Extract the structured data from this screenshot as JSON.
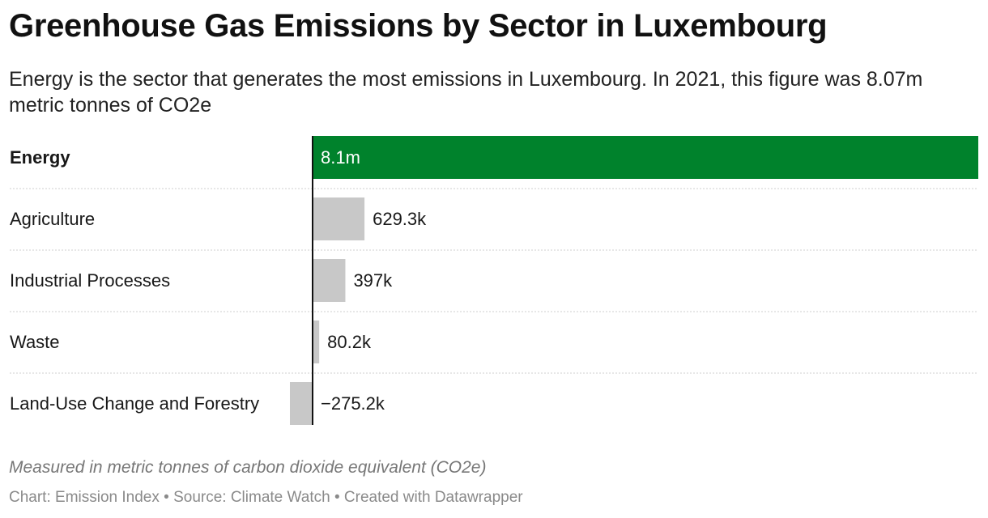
{
  "title": "Greenhouse Gas Emissions by Sector in Luxembourg",
  "subtitle": "Energy is the sector that generates the most emissions in Luxembourg. In 2021, this figure was 8.07m metric tonnes of CO2e",
  "notes": "Measured in metric tonnes of carbon dioxide equivalent (CO2e)",
  "footer": {
    "chart": "Chart: Emission Index",
    "source": "Source: Climate Watch",
    "created": "Created with Datawrapper",
    "separator": " • "
  },
  "colors": {
    "highlight": "#00822c",
    "default": "#c8c8c8",
    "axis": "#111111"
  },
  "chart_data": {
    "type": "bar",
    "orientation": "horizontal",
    "title": "Greenhouse Gas Emissions by Sector in Luxembourg",
    "categories": [
      "Energy",
      "Agriculture",
      "Industrial Processes",
      "Waste",
      "Land-Use Change and Forestry"
    ],
    "values": [
      8070000,
      629300,
      397000,
      80200,
      -275200
    ],
    "value_labels": [
      "8.1m",
      "629.3k",
      "397k",
      "80.2k",
      "−275.2k"
    ],
    "highlight": "Energy",
    "xlim": [
      -275200,
      8070000
    ],
    "grid": false,
    "legend": "none",
    "xlabel": "",
    "ylabel": ""
  }
}
